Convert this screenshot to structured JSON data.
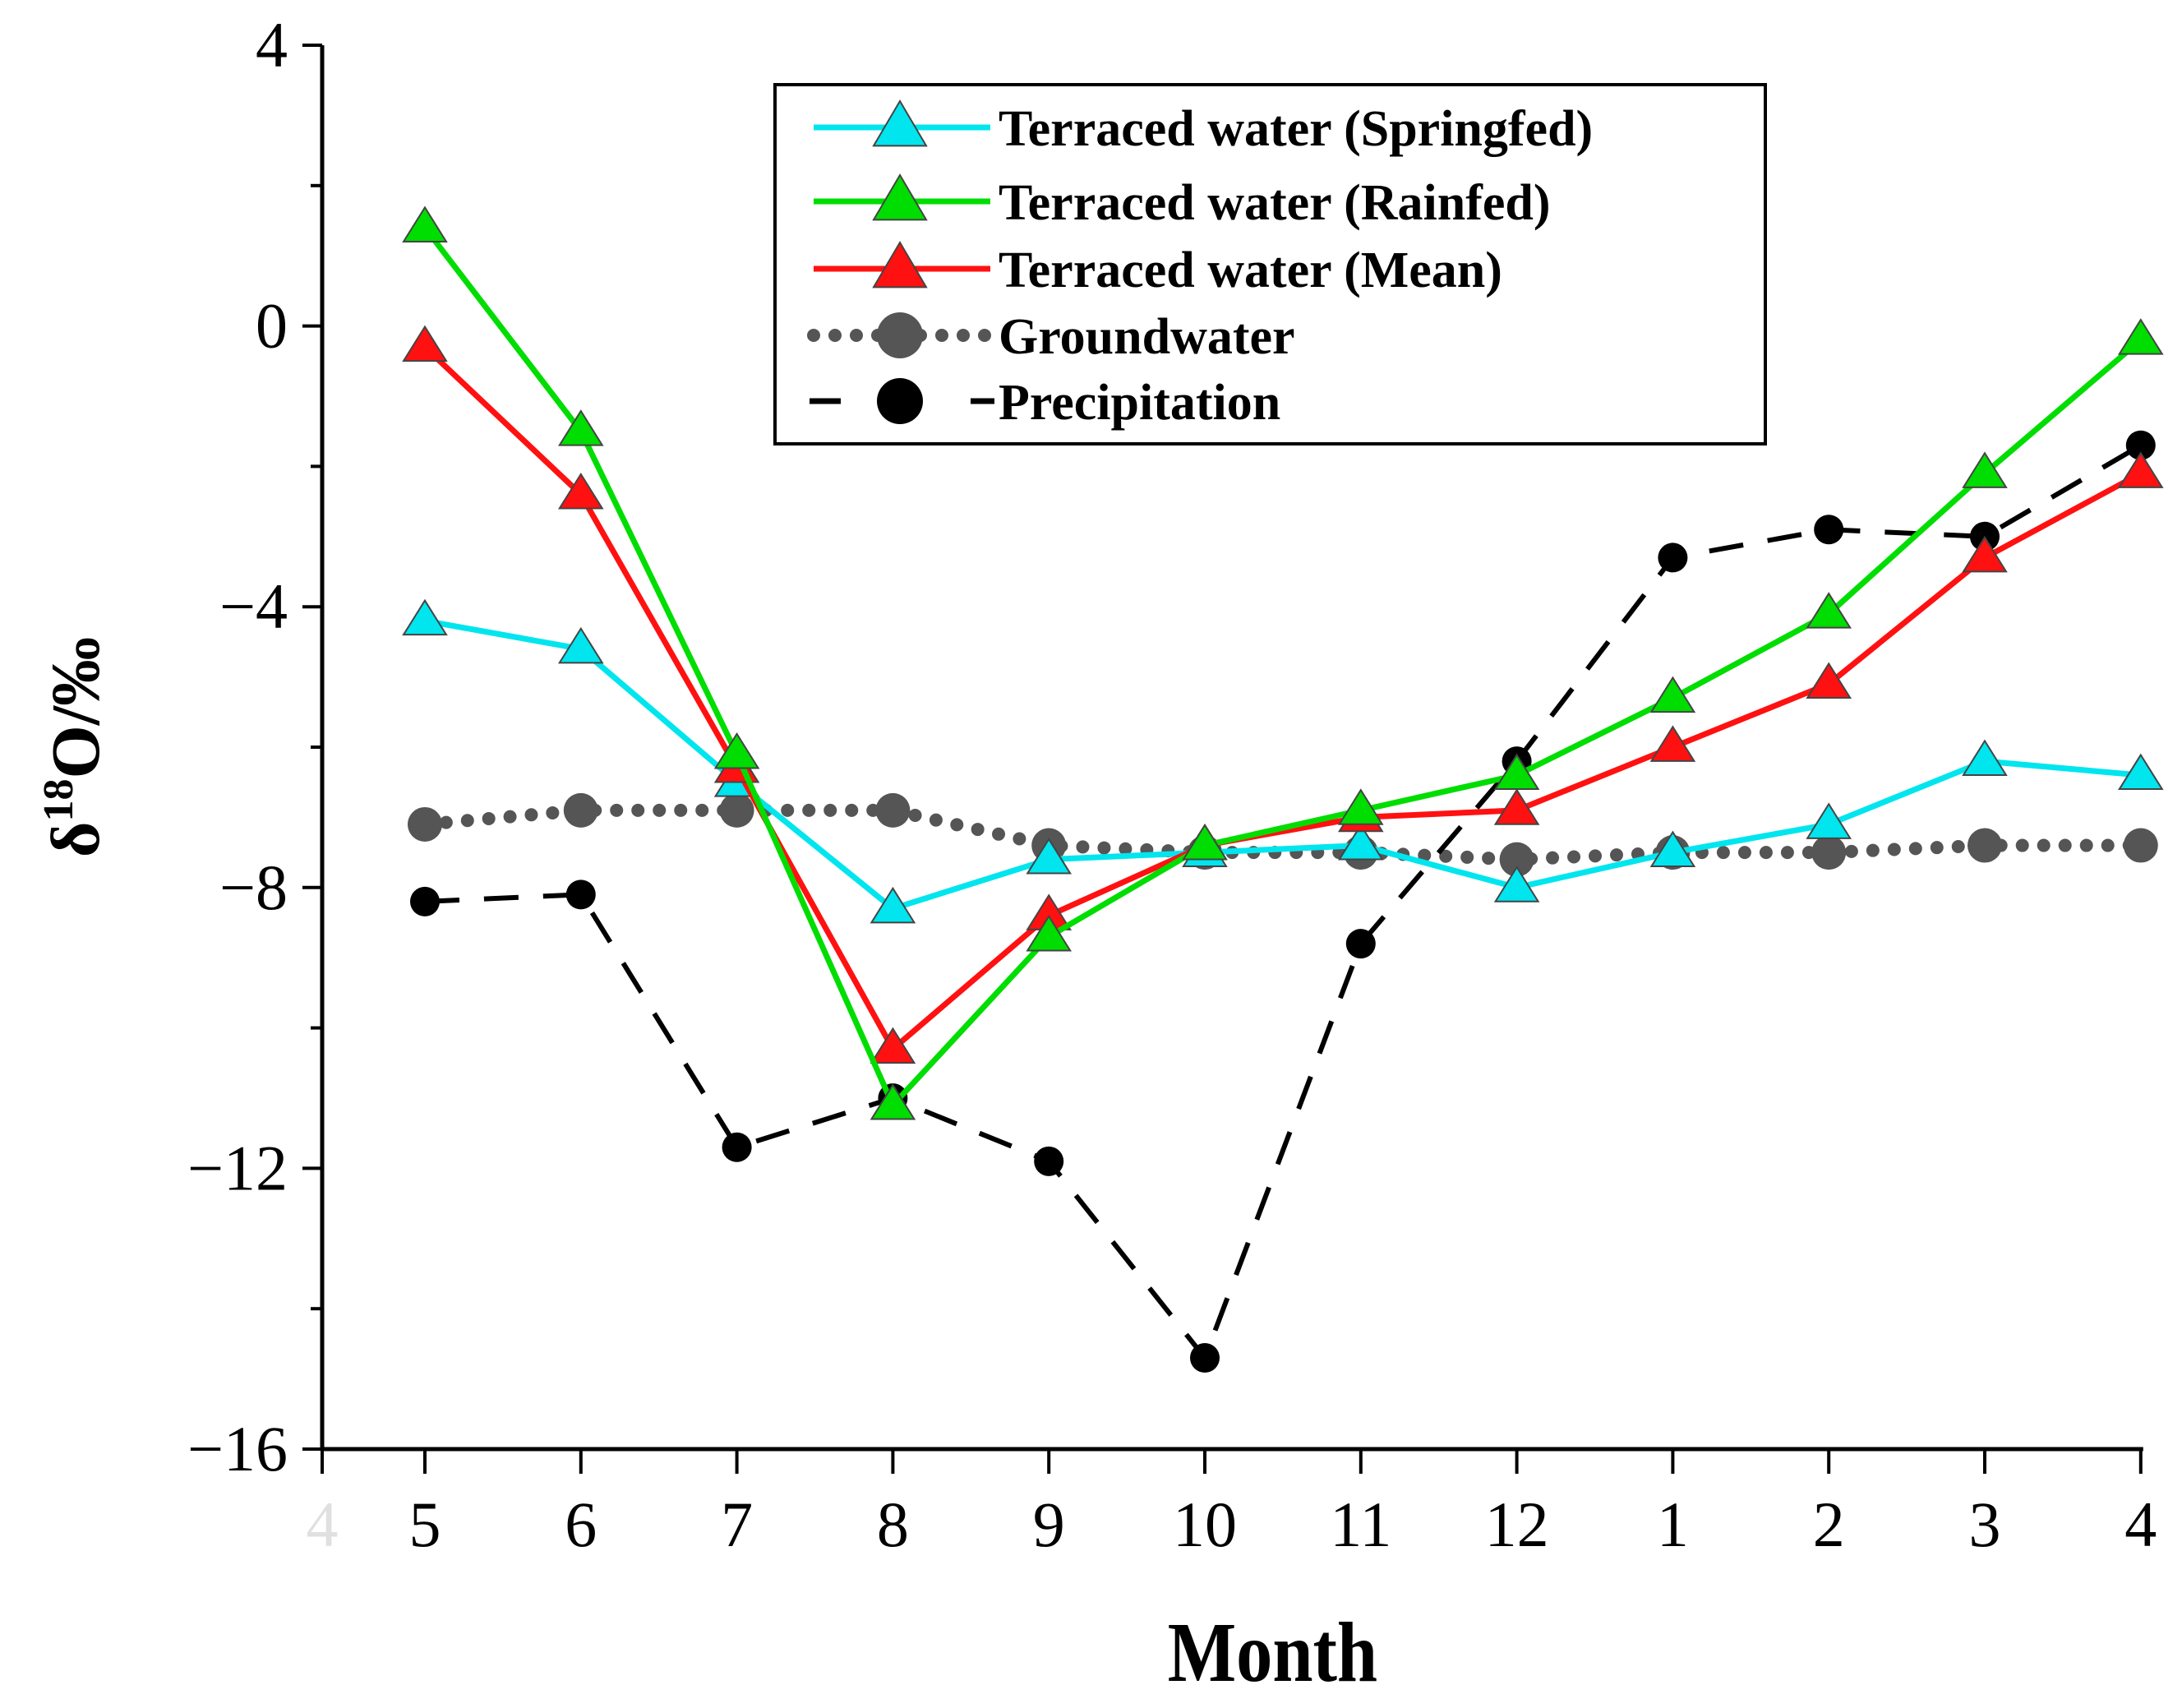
{
  "chart_data": {
    "type": "line",
    "title": "",
    "xlabel": "Month",
    "ylabel_main": "δ",
    "ylabel_sup": "18",
    "ylabel_rest": "O/‰",
    "ylim": [
      -16,
      4
    ],
    "yticks": [
      4,
      0,
      -4,
      -8,
      -12,
      -16
    ],
    "ytick_labels": [
      "4",
      "0",
      "−4",
      "−8",
      "−12",
      "−16"
    ],
    "x_label_faint_left": "4",
    "categories": [
      "5",
      "6",
      "7",
      "8",
      "9",
      "10",
      "11",
      "12",
      "1",
      "2",
      "3",
      "4"
    ],
    "grid": false,
    "legend_position": "top-right",
    "series": [
      {
        "name": "Terraced water (Springfed)",
        "color": "#00e5ee",
        "marker": "triangle",
        "line_style": "solid",
        "values": [
          -4.2,
          -4.6,
          -6.5,
          -8.3,
          -7.6,
          -7.5,
          -7.4,
          -8.0,
          -7.5,
          -7.1,
          -6.2,
          -6.4
        ]
      },
      {
        "name": "Terraced water (Rainfed)",
        "color": "#00dd00",
        "marker": "triangle",
        "line_style": "solid",
        "values": [
          1.4,
          -1.5,
          -6.1,
          -11.1,
          -8.7,
          -7.4,
          -6.9,
          -6.4,
          -5.3,
          -4.1,
          -2.1,
          -0.2
        ]
      },
      {
        "name": "Terraced water (Mean)",
        "color": "#ff1111",
        "marker": "triangle",
        "line_style": "solid",
        "values": [
          -0.3,
          -2.4,
          -6.3,
          -10.3,
          -8.4,
          -7.4,
          -7.0,
          -6.9,
          -6.0,
          -5.1,
          -3.3,
          -2.1
        ]
      },
      {
        "name": "Groundwater",
        "color": "#555555",
        "marker": "circle",
        "line_style": "dotted",
        "values": [
          -7.1,
          -6.9,
          -6.9,
          -6.9,
          -7.4,
          -7.5,
          -7.5,
          -7.6,
          -7.5,
          -7.5,
          -7.4,
          -7.4
        ]
      },
      {
        "name": "Precipitation",
        "color": "#000000",
        "marker": "circle",
        "line_style": "dashed",
        "values": [
          -8.2,
          -8.1,
          -11.7,
          -11.0,
          -11.9,
          -14.7,
          -8.8,
          -6.2,
          -3.3,
          -2.9,
          -3.0,
          -1.7
        ]
      }
    ]
  }
}
